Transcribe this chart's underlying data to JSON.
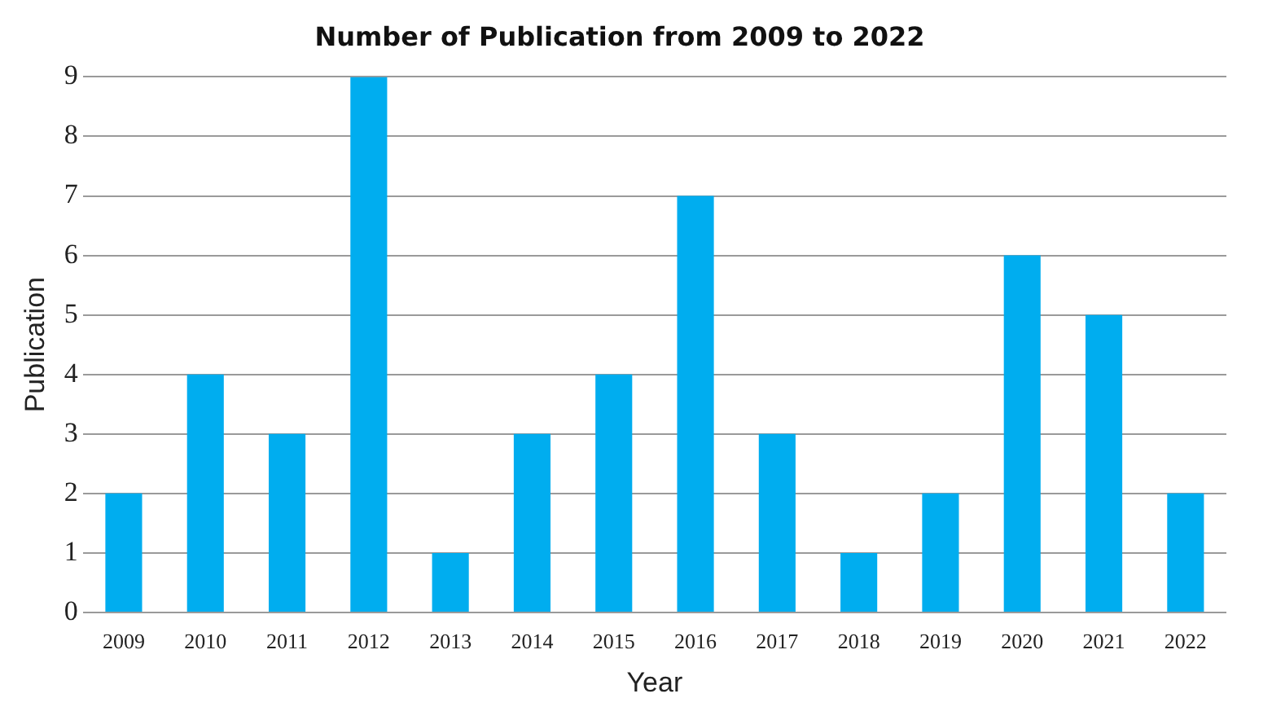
{
  "chart_data": {
    "type": "bar",
    "title": "Number of Publication from 2009 to 2022",
    "xlabel": "Year",
    "ylabel": "Publication",
    "categories": [
      "2009",
      "2010",
      "2011",
      "2012",
      "2013",
      "2014",
      "2015",
      "2016",
      "2017",
      "2018",
      "2019",
      "2020",
      "2021",
      "2022"
    ],
    "values": [
      2,
      4,
      3,
      9,
      1,
      3,
      4,
      7,
      3,
      1,
      2,
      6,
      5,
      2
    ],
    "color": "#00adef",
    "ylim": [
      0,
      9
    ],
    "yticks": [
      0,
      1,
      2,
      3,
      4,
      5,
      6,
      7,
      8,
      9
    ],
    "grid": "y",
    "legend": false
  }
}
